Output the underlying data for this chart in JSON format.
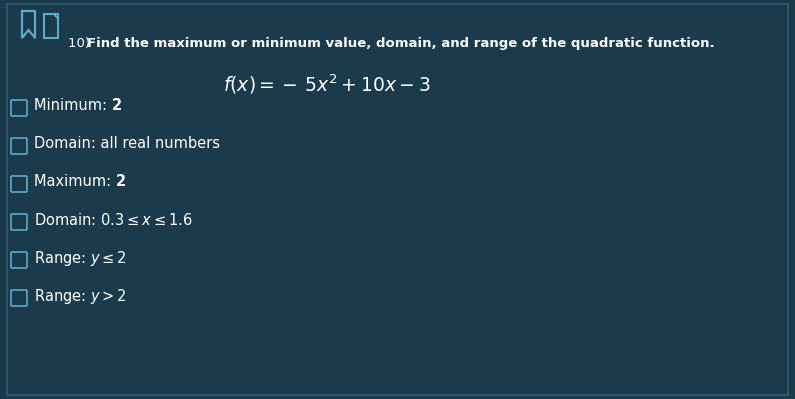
{
  "bg_color": "#1b3a4b",
  "border_color": "#2e6070",
  "icon_color": "#5aabcc",
  "text_color": "#ffffff",
  "checkbox_color": "#5aabcc",
  "title_num": "10) ",
  "title_bold": "Find the maximum or minimum value, domain, and range of the quadratic function.",
  "func_latex": "$f(x) = -\\,5x^2 + 10x - 3$",
  "options": [
    [
      "Minimum: ",
      "2",
      true
    ],
    [
      "Domain: all real numbers",
      "",
      false
    ],
    [
      "Maximum: ",
      "2",
      true
    ],
    [
      "Domain: $0.3 \\leq x \\leq 1.6$",
      "",
      false
    ],
    [
      "Range: $y \\leq 2$",
      "",
      false
    ],
    [
      "Range: $y > 2$",
      "",
      false
    ]
  ],
  "title_fontsize": 9.5,
  "option_fontsize": 10.5,
  "func_fontsize": 13.5,
  "fig_width": 7.95,
  "fig_height": 3.99,
  "dpi": 100
}
